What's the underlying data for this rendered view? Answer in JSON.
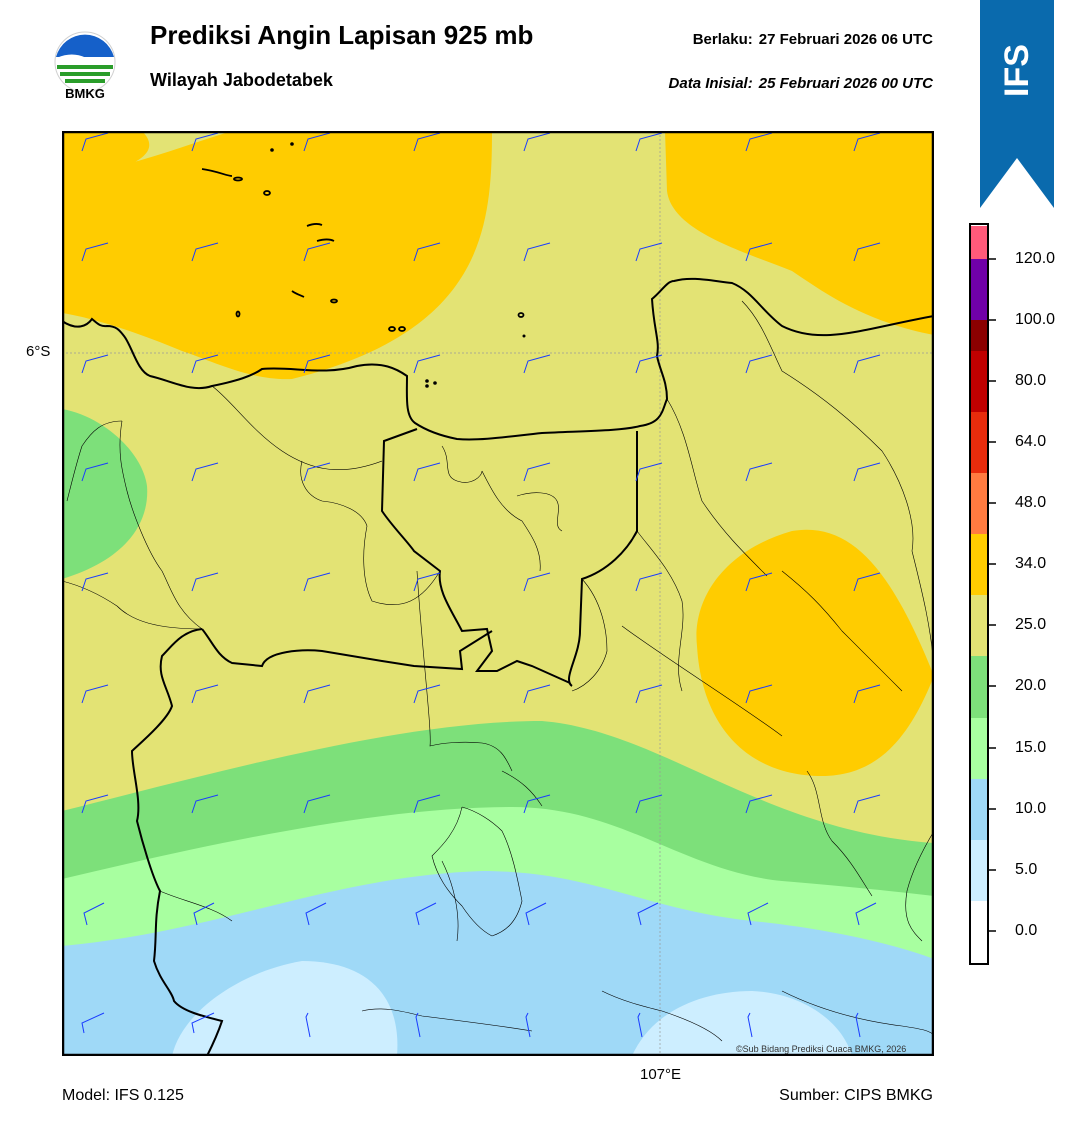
{
  "header": {
    "logo_text": "BMKG",
    "title": "Prediksi Angin Lapisan 925 mb",
    "subtitle": "Wilayah Jabodetabek",
    "valid_label": "Berlaku:",
    "valid_value": "27 Februari 2026 06 UTC",
    "init_label": "Data Inisial:",
    "init_value": "25 Februari 2026 00 UTC"
  },
  "banner": {
    "text": "IFS",
    "color": "#0a6aad"
  },
  "map": {
    "lat_label": "6°S",
    "lon_label": "107°E",
    "copyright": "©Sub Bidang Prediksi Cuaca BMKG, 2026",
    "barb_color": "#1a3cff"
  },
  "colorbar": {
    "labels": [
      "0.0",
      "5.0",
      "10.0",
      "15.0",
      "20.0",
      "25.0",
      "34.0",
      "48.0",
      "64.0",
      "80.0",
      "100.0",
      "120.0"
    ],
    "colors": [
      "#ffffff",
      "#cdeeff",
      "#9fd9f7",
      "#a8ffa0",
      "#7de07a",
      "#e3e374",
      "#ffcc00",
      "#ff7b40",
      "#e82c0c",
      "#c00000",
      "#8b0000",
      "#7000a8",
      "#ff5a7a"
    ]
  },
  "footer": {
    "model": "Model: IFS 0.125",
    "source": "Sumber: CIPS BMKG"
  }
}
